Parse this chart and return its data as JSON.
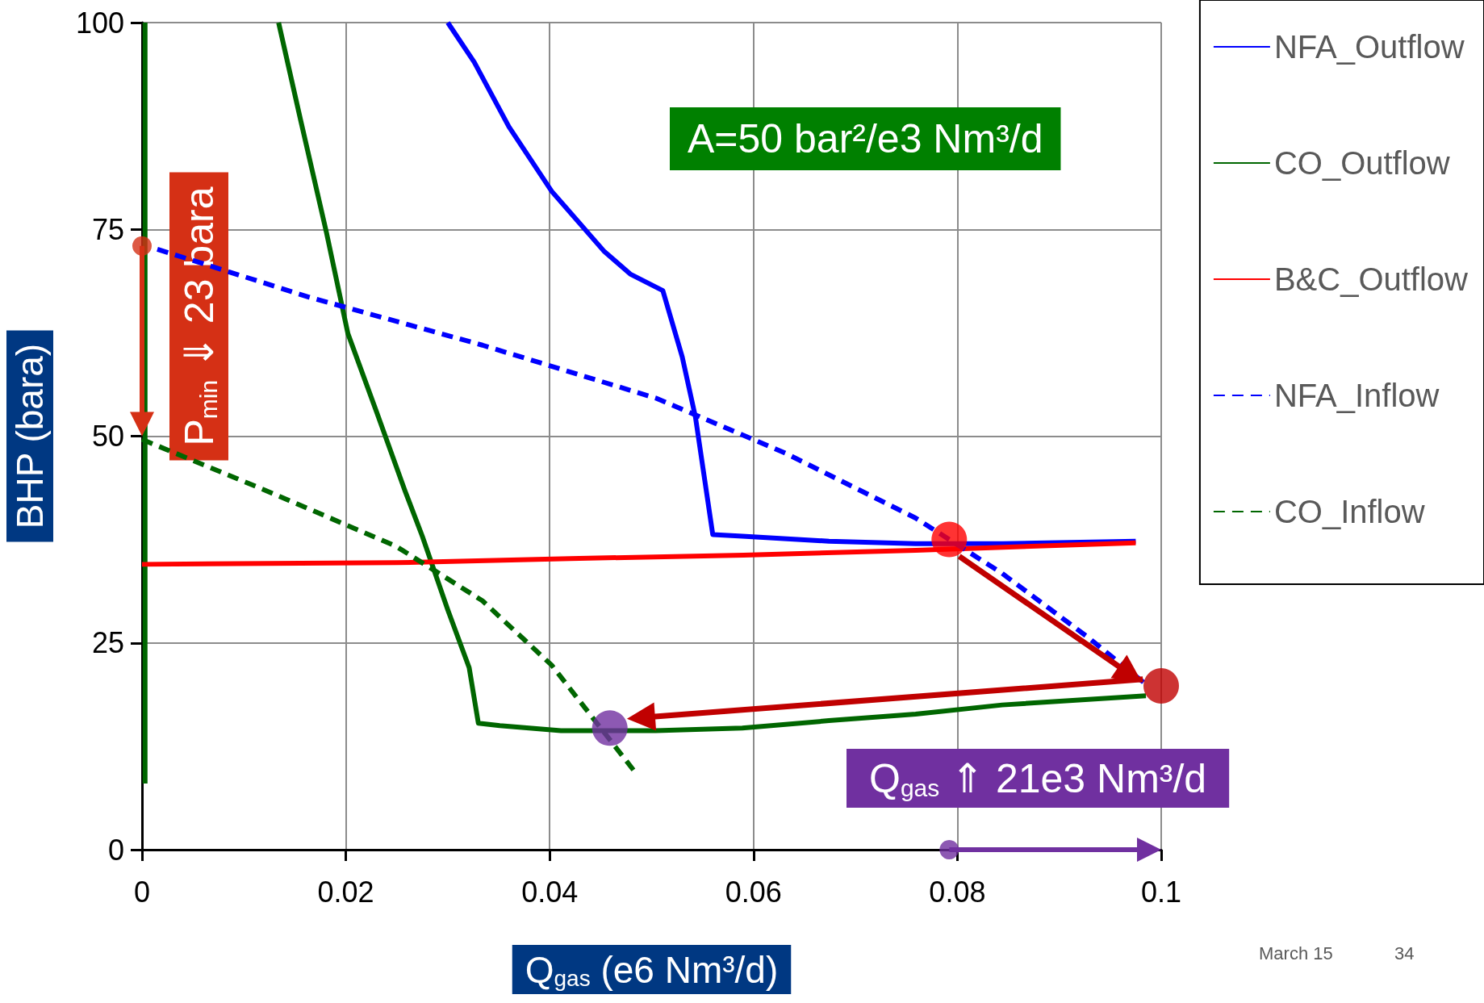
{
  "chart_data": {
    "type": "line",
    "xlabel": "Q$_{gas}$ (e6 Nm³/d)",
    "ylabel": "BHP (bara)",
    "xlim": [
      0,
      0.1
    ],
    "xticks": [
      0,
      0.02,
      0.04,
      0.06,
      0.08,
      0.1
    ],
    "ylim": [
      0,
      100
    ],
    "yticks": [
      0,
      25,
      50,
      75,
      100
    ],
    "grid": true,
    "legend": "right",
    "marker": "none",
    "line_style": "solid",
    "series": [
      {
        "name": "NFA_Outflow",
        "color": "#0000ff",
        "x": [
          0.03,
          0.0326,
          0.036,
          0.0402,
          0.0453,
          0.0479,
          0.0511,
          0.053,
          0.0543,
          0.056,
          0.0589,
          0.0674,
          0.0759,
          0.0844,
          0.0975
        ],
        "values": [
          100,
          95.2,
          87.4,
          79.6,
          72.4,
          69.6,
          67.6,
          59.6,
          52.3,
          38.1,
          37.9,
          37.3,
          37,
          37,
          37.3
        ]
      },
      {
        "name": "CO_Outflow",
        "color": "#006600",
        "x": [
          0.0003,
          0.0003,
          0.005,
          0.0134,
          0.0156,
          0.0181,
          0.0202,
          0.0232,
          0.0258,
          0.0275,
          0.03,
          0.0321,
          0.033,
          0.0351,
          0.0411,
          0.0504,
          0.0589,
          0.0674,
          0.0759,
          0.0844,
          0.0985
        ],
        "values": [
          8,
          100,
          null,
          100,
          88,
          74.6,
          62.4,
          52.3,
          43.4,
          37.9,
          29,
          22,
          15.3,
          15,
          14.4,
          14.4,
          14.7,
          15.6,
          16.4,
          17.5,
          18.6
        ]
      },
      {
        "name": "B&C_Outflow",
        "color": "#ff0000",
        "x": [
          0,
          0.025,
          0.042,
          0.059,
          0.0759,
          0.0975
        ],
        "values": [
          34.5,
          34.7,
          35.2,
          35.6,
          36.2,
          37.1
        ]
      },
      {
        "name": "NFA_Inflow",
        "color": "#0000ff",
        "line_style": "dashed",
        "x": [
          0.0015,
          0.0164,
          0.0334,
          0.0504,
          0.0632,
          0.0759,
          0.0844,
          0.0929,
          0.0985
        ],
        "values": [
          72.6,
          66.8,
          61,
          54.6,
          47.9,
          40.1,
          33.4,
          25.6,
          20
        ]
      },
      {
        "name": "CO_Inflow",
        "color": "#006600",
        "line_style": "dashed",
        "x": [
          0,
          0.0122,
          0.0249,
          0.0334,
          0.0402,
          0.0483
        ],
        "values": [
          49.6,
          43.4,
          36.7,
          30.1,
          22.3,
          9.5
        ]
      },
      {
        "type": "scatter",
        "marker": "circle",
        "x": [
          0.0792,
          0.1,
          0.0459
        ],
        "values": [
          37.5,
          19.8,
          14.7
        ],
        "colors": [
          "#ff0000",
          "#c00000",
          "#7030a0"
        ]
      },
      {
        "type": "scatter",
        "marker": "circle",
        "color": "#d53015",
        "x": [
          0
        ],
        "values": [
          73
        ]
      },
      {
        "type": "scatter",
        "marker": "circle",
        "color": "#7030a0",
        "x": [
          0.0792
        ],
        "values": [
          0
        ]
      }
    ],
    "annotations": [
      "A=50 bar²/e3 Nm³/d",
      {
        "text": "P$_{min}$ ⇓ 23 bara",
        "x": 0,
        "y": 50
      },
      "Q$_{gas}$ ⇑ 21e3 Nm³/d",
      "March 15",
      "34"
    ]
  }
}
